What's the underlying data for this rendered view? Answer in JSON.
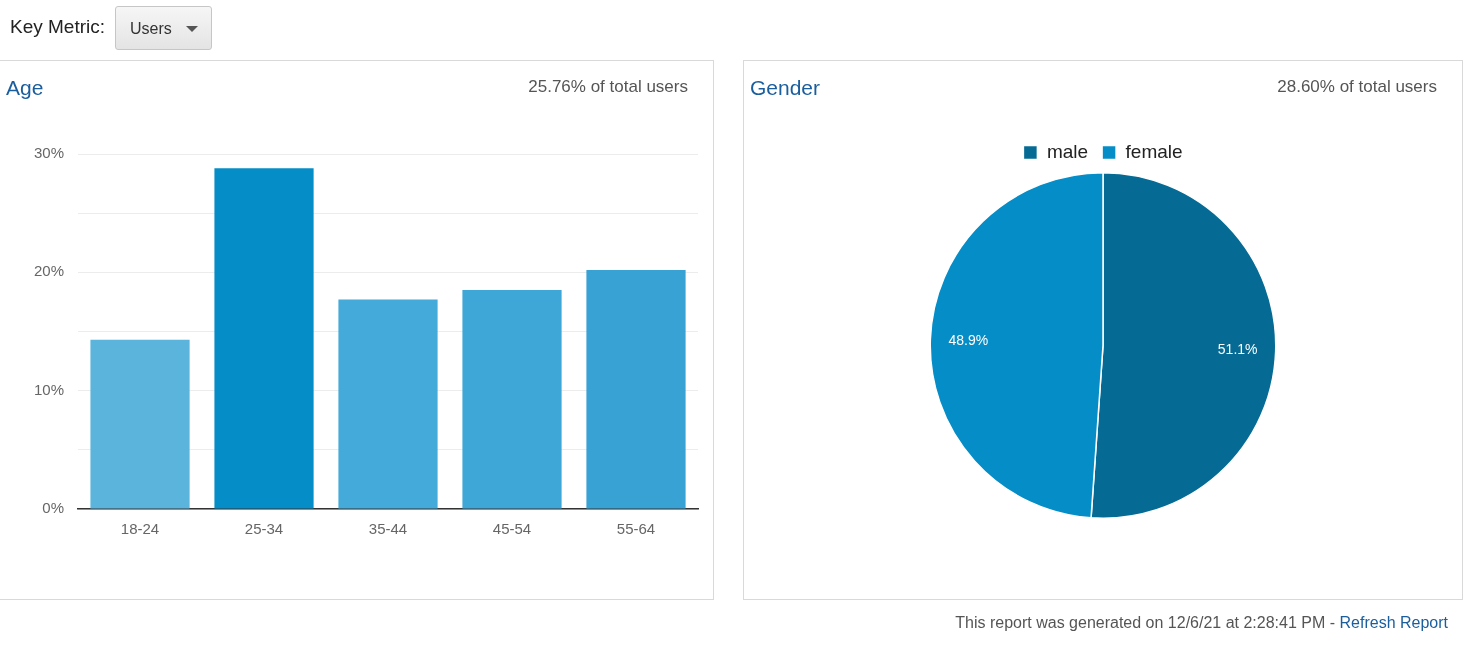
{
  "chart_data": [
    {
      "type": "other",
      "annotations": [
        "Key Metric:",
        "Users"
      ]
    },
    {
      "type": "bar",
      "title": "Age",
      "subtitle": "25.76% of total users",
      "categories": [
        "18-24",
        "25-34",
        "35-44",
        "45-54",
        "55-64"
      ],
      "values": [
        14.3,
        28.8,
        17.7,
        18.5,
        20.2
      ],
      "colors": [
        "#5ab4dc",
        "#058dc7",
        "#43aad9",
        "#3ea7d7",
        "#37a2d3"
      ],
      "ylim": [
        0,
        30
      ],
      "yticks": [
        {
          "value": 0,
          "label": "0%"
        },
        {
          "value": 5,
          "label": null
        },
        {
          "value": 10,
          "label": "10%"
        },
        {
          "value": 15,
          "label": null
        },
        {
          "value": 20,
          "label": "20%"
        },
        {
          "value": 25,
          "label": null
        },
        {
          "value": 30,
          "label": "30%"
        }
      ],
      "grid": "y",
      "legend": false
    },
    {
      "type": "pie",
      "title": "Gender",
      "subtitle": "28.60% of total users",
      "categories": [
        "male",
        "female"
      ],
      "values": [
        51.1,
        48.9
      ],
      "colors": [
        "#066b94",
        "#058dc7"
      ],
      "value_labels": [
        "51.1%",
        "48.9%"
      ],
      "legend": "top",
      "annotations": [
        "This report was generated on 12/6/21 at 2:28:41 PM - ",
        "Refresh Report"
      ]
    }
  ]
}
